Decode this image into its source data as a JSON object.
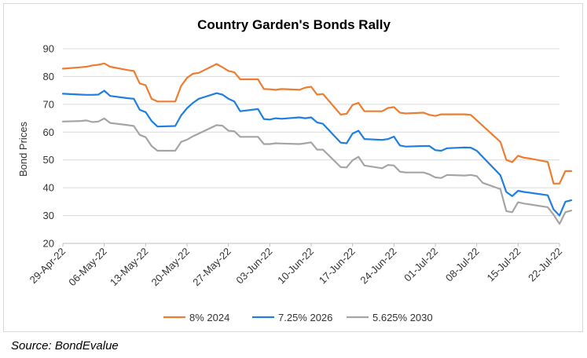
{
  "chart_data": {
    "type": "line",
    "title": "Country Garden's Bonds Rally",
    "ylabel": "Bond Prices",
    "xlabel": "",
    "ylim": [
      20,
      90
    ],
    "yticks": [
      20,
      30,
      40,
      50,
      60,
      70,
      80,
      90
    ],
    "grid": "horizontal",
    "legend": "bottom",
    "xticks": [
      "29-Apr-22",
      "06-May-22",
      "13-May-22",
      "20-May-22",
      "27-May-22",
      "03-Jun-22",
      "10-Jun-22",
      "17-Jun-22",
      "24-Jun-22",
      "01-Jul-22",
      "08-Jul-22",
      "15-Jul-22",
      "22-Jul-22"
    ],
    "series": [
      {
        "name": "8% 2024",
        "color": "#ED7D31",
        "points": [
          [
            "2022-04-29",
            82.8
          ],
          [
            "2022-05-02",
            83.3
          ],
          [
            "2022-05-03",
            83.5
          ],
          [
            "2022-05-04",
            84.0
          ],
          [
            "2022-05-05",
            84.2
          ],
          [
            "2022-05-06",
            84.7
          ],
          [
            "2022-05-07",
            83.5
          ],
          [
            "2022-05-10",
            82.3
          ],
          [
            "2022-05-11",
            82.0
          ],
          [
            "2022-05-12",
            77.5
          ],
          [
            "2022-05-13",
            76.9
          ],
          [
            "2022-05-14",
            72.0
          ],
          [
            "2022-05-15",
            71.0
          ],
          [
            "2022-05-18",
            71.0
          ],
          [
            "2022-05-19",
            76.6
          ],
          [
            "2022-05-20",
            79.5
          ],
          [
            "2022-05-21",
            81.0
          ],
          [
            "2022-05-22",
            81.3
          ],
          [
            "2022-05-25",
            84.5
          ],
          [
            "2022-05-26",
            83.3
          ],
          [
            "2022-05-27",
            82.0
          ],
          [
            "2022-05-28",
            81.5
          ],
          [
            "2022-05-29",
            79.0
          ],
          [
            "2022-06-01",
            79.0
          ],
          [
            "2022-06-02",
            75.5
          ],
          [
            "2022-06-03",
            75.4
          ],
          [
            "2022-06-04",
            75.2
          ],
          [
            "2022-06-05",
            75.5
          ],
          [
            "2022-06-08",
            75.2
          ],
          [
            "2022-06-09",
            76.0
          ],
          [
            "2022-06-10",
            76.3
          ],
          [
            "2022-06-11",
            73.5
          ],
          [
            "2022-06-12",
            73.7
          ],
          [
            "2022-06-15",
            66.3
          ],
          [
            "2022-06-16",
            66.6
          ],
          [
            "2022-06-17",
            69.8
          ],
          [
            "2022-06-18",
            70.5
          ],
          [
            "2022-06-19",
            67.5
          ],
          [
            "2022-06-22",
            67.5
          ],
          [
            "2022-06-23",
            68.7
          ],
          [
            "2022-06-24",
            69.0
          ],
          [
            "2022-06-25",
            67.0
          ],
          [
            "2022-06-26",
            66.7
          ],
          [
            "2022-06-29",
            67.0
          ],
          [
            "2022-06-30",
            66.2
          ],
          [
            "2022-07-01",
            65.8
          ],
          [
            "2022-07-02",
            66.4
          ],
          [
            "2022-07-03",
            66.4
          ],
          [
            "2022-07-06",
            66.4
          ],
          [
            "2022-07-07",
            66.2
          ],
          [
            "2022-07-12",
            56.5
          ],
          [
            "2022-07-13",
            50.0
          ],
          [
            "2022-07-14",
            49.2
          ],
          [
            "2022-07-15",
            51.5
          ],
          [
            "2022-07-16",
            50.8
          ],
          [
            "2022-07-17",
            50.5
          ],
          [
            "2022-07-20",
            49.3
          ],
          [
            "2022-07-21",
            41.5
          ],
          [
            "2022-07-22",
            41.5
          ],
          [
            "2022-07-23",
            46.0
          ],
          [
            "2022-07-24",
            46.0
          ]
        ]
      },
      {
        "name": "7.25% 2026",
        "color": "#1F7FE0",
        "points": [
          [
            "2022-04-29",
            73.8
          ],
          [
            "2022-05-02",
            73.5
          ],
          [
            "2022-05-03",
            73.4
          ],
          [
            "2022-05-04",
            73.4
          ],
          [
            "2022-05-05",
            73.5
          ],
          [
            "2022-05-06",
            74.9
          ],
          [
            "2022-05-07",
            73.0
          ],
          [
            "2022-05-10",
            72.2
          ],
          [
            "2022-05-11",
            72.0
          ],
          [
            "2022-05-12",
            68.0
          ],
          [
            "2022-05-13",
            67.2
          ],
          [
            "2022-05-14",
            64.0
          ],
          [
            "2022-05-15",
            62.0
          ],
          [
            "2022-05-18",
            62.2
          ],
          [
            "2022-05-19",
            66.0
          ],
          [
            "2022-05-20",
            68.6
          ],
          [
            "2022-05-21",
            70.5
          ],
          [
            "2022-05-22",
            72.0
          ],
          [
            "2022-05-25",
            74.0
          ],
          [
            "2022-05-26",
            73.5
          ],
          [
            "2022-05-27",
            72.0
          ],
          [
            "2022-05-28",
            71.0
          ],
          [
            "2022-05-29",
            67.5
          ],
          [
            "2022-06-01",
            68.3
          ],
          [
            "2022-06-02",
            64.7
          ],
          [
            "2022-06-03",
            64.5
          ],
          [
            "2022-06-04",
            65.0
          ],
          [
            "2022-06-05",
            64.8
          ],
          [
            "2022-06-08",
            65.3
          ],
          [
            "2022-06-09",
            65.0
          ],
          [
            "2022-06-10",
            65.3
          ],
          [
            "2022-06-11",
            63.5
          ],
          [
            "2022-06-12",
            63.0
          ],
          [
            "2022-06-15",
            56.2
          ],
          [
            "2022-06-16",
            56.0
          ],
          [
            "2022-06-17",
            59.5
          ],
          [
            "2022-06-18",
            60.5
          ],
          [
            "2022-06-19",
            57.5
          ],
          [
            "2022-06-22",
            57.2
          ],
          [
            "2022-06-23",
            57.5
          ],
          [
            "2022-06-24",
            58.4
          ],
          [
            "2022-06-25",
            55.2
          ],
          [
            "2022-06-26",
            54.8
          ],
          [
            "2022-06-29",
            55.0
          ],
          [
            "2022-06-30",
            55.0
          ],
          [
            "2022-07-01",
            53.5
          ],
          [
            "2022-07-02",
            53.3
          ],
          [
            "2022-07-03",
            54.2
          ],
          [
            "2022-07-06",
            54.5
          ],
          [
            "2022-07-07",
            54.4
          ],
          [
            "2022-07-08",
            53.3
          ],
          [
            "2022-07-12",
            44.5
          ],
          [
            "2022-07-13",
            38.5
          ],
          [
            "2022-07-14",
            37.0
          ],
          [
            "2022-07-15",
            38.9
          ],
          [
            "2022-07-16",
            38.5
          ],
          [
            "2022-07-17",
            38.2
          ],
          [
            "2022-07-20",
            37.3
          ],
          [
            "2022-07-21",
            32.2
          ],
          [
            "2022-07-22",
            30.0
          ],
          [
            "2022-07-23",
            35.0
          ],
          [
            "2022-07-24",
            35.5
          ]
        ]
      },
      {
        "name": "5.625% 2030",
        "color": "#A5A5A5",
        "points": [
          [
            "2022-04-29",
            63.8
          ],
          [
            "2022-05-02",
            64.0
          ],
          [
            "2022-05-03",
            64.2
          ],
          [
            "2022-05-04",
            63.6
          ],
          [
            "2022-05-05",
            63.8
          ],
          [
            "2022-05-06",
            64.9
          ],
          [
            "2022-05-07",
            63.3
          ],
          [
            "2022-05-10",
            62.5
          ],
          [
            "2022-05-11",
            62.2
          ],
          [
            "2022-05-12",
            59.0
          ],
          [
            "2022-05-13",
            58.2
          ],
          [
            "2022-05-14",
            55.0
          ],
          [
            "2022-05-15",
            53.3
          ],
          [
            "2022-05-18",
            53.3
          ],
          [
            "2022-05-19",
            56.5
          ],
          [
            "2022-05-20",
            57.3
          ],
          [
            "2022-05-21",
            58.5
          ],
          [
            "2022-05-22",
            59.5
          ],
          [
            "2022-05-25",
            62.5
          ],
          [
            "2022-05-26",
            62.3
          ],
          [
            "2022-05-27",
            60.5
          ],
          [
            "2022-05-28",
            60.3
          ],
          [
            "2022-05-29",
            58.3
          ],
          [
            "2022-06-01",
            58.3
          ],
          [
            "2022-06-02",
            55.7
          ],
          [
            "2022-06-03",
            55.7
          ],
          [
            "2022-06-04",
            56.0
          ],
          [
            "2022-06-05",
            55.9
          ],
          [
            "2022-06-08",
            55.7
          ],
          [
            "2022-06-09",
            56.0
          ],
          [
            "2022-06-10",
            56.3
          ],
          [
            "2022-06-11",
            53.7
          ],
          [
            "2022-06-12",
            53.7
          ],
          [
            "2022-06-15",
            47.4
          ],
          [
            "2022-06-16",
            47.3
          ],
          [
            "2022-06-17",
            49.9
          ],
          [
            "2022-06-18",
            51.1
          ],
          [
            "2022-06-19",
            48.0
          ],
          [
            "2022-06-22",
            47.0
          ],
          [
            "2022-06-23",
            48.2
          ],
          [
            "2022-06-24",
            48.0
          ],
          [
            "2022-06-25",
            45.8
          ],
          [
            "2022-06-26",
            45.5
          ],
          [
            "2022-06-29",
            45.5
          ],
          [
            "2022-06-30",
            44.8
          ],
          [
            "2022-07-01",
            43.7
          ],
          [
            "2022-07-02",
            43.5
          ],
          [
            "2022-07-03",
            44.6
          ],
          [
            "2022-07-06",
            44.4
          ],
          [
            "2022-07-07",
            44.6
          ],
          [
            "2022-07-08",
            44.2
          ],
          [
            "2022-07-09",
            41.8
          ],
          [
            "2022-07-12",
            39.5
          ],
          [
            "2022-07-13",
            31.6
          ],
          [
            "2022-07-14",
            31.2
          ],
          [
            "2022-07-15",
            34.8
          ],
          [
            "2022-07-16",
            34.3
          ],
          [
            "2022-07-17",
            34.0
          ],
          [
            "2022-07-20",
            33.0
          ],
          [
            "2022-07-21",
            30.3
          ],
          [
            "2022-07-22",
            27.0
          ],
          [
            "2022-07-23",
            31.2
          ],
          [
            "2022-07-24",
            31.8
          ]
        ]
      }
    ]
  },
  "source": "Source: BondEvalue"
}
